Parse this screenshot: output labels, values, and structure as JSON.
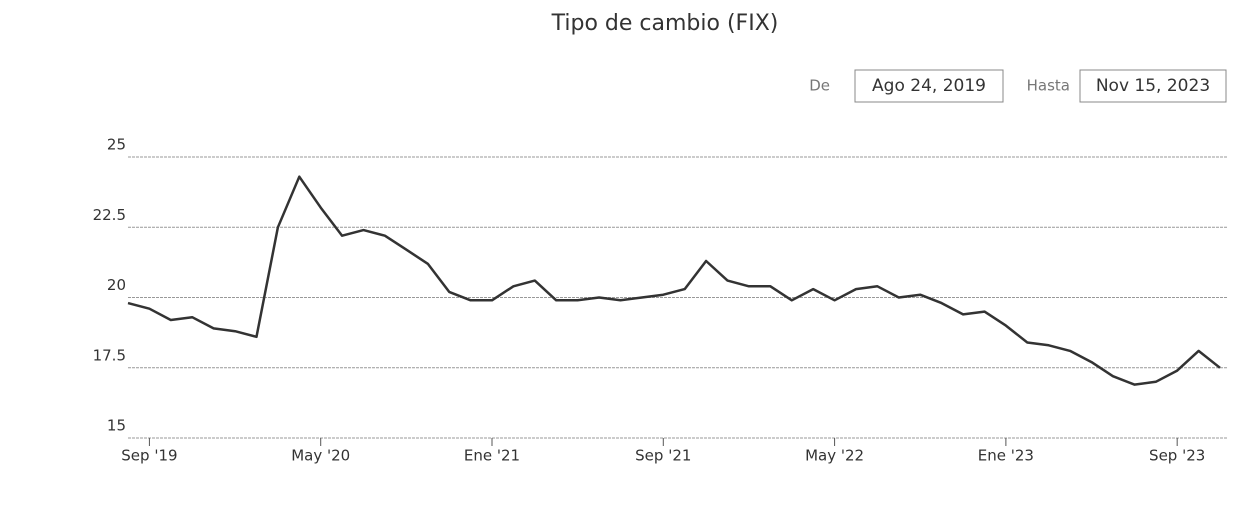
{
  "chart_data": {
    "type": "line",
    "title": "Tipo de cambio (FIX)",
    "date_from_label": "De",
    "date_from": "Ago 24, 2019",
    "date_to_label": "Hasta",
    "date_to": "Nov 15, 2023",
    "categories": [
      null,
      "Sep '19",
      null,
      null,
      null,
      null,
      null,
      null,
      null,
      "May '20",
      null,
      null,
      null,
      null,
      null,
      null,
      null,
      "Ene '21",
      null,
      null,
      null,
      null,
      null,
      null,
      null,
      "Sep '21",
      null,
      null,
      null,
      null,
      null,
      null,
      null,
      "May '22",
      null,
      null,
      null,
      null,
      null,
      null,
      null,
      "Ene '23",
      null,
      null,
      null,
      null,
      null,
      null,
      null,
      "Sep '23",
      null,
      null
    ],
    "series": [
      {
        "name": "FIX",
        "color": "#333333",
        "values": [
          19.8,
          19.6,
          19.2,
          19.3,
          18.9,
          18.8,
          18.6,
          22.5,
          24.3,
          23.2,
          22.2,
          22.4,
          22.2,
          21.7,
          21.2,
          20.2,
          19.9,
          19.9,
          20.4,
          20.6,
          19.9,
          19.9,
          20.0,
          19.9,
          20.0,
          20.1,
          20.3,
          21.3,
          20.6,
          20.4,
          20.4,
          19.9,
          20.3,
          19.9,
          20.3,
          20.4,
          20.0,
          20.1,
          19.8,
          19.4,
          19.5,
          19.0,
          18.4,
          18.3,
          18.1,
          17.7,
          17.2,
          16.9,
          17.0,
          17.4,
          18.1,
          17.5
        ]
      }
    ],
    "ylim": [
      15,
      25
    ],
    "yticks": [
      15,
      17.5,
      20,
      22.5,
      25
    ],
    "grid": true
  }
}
